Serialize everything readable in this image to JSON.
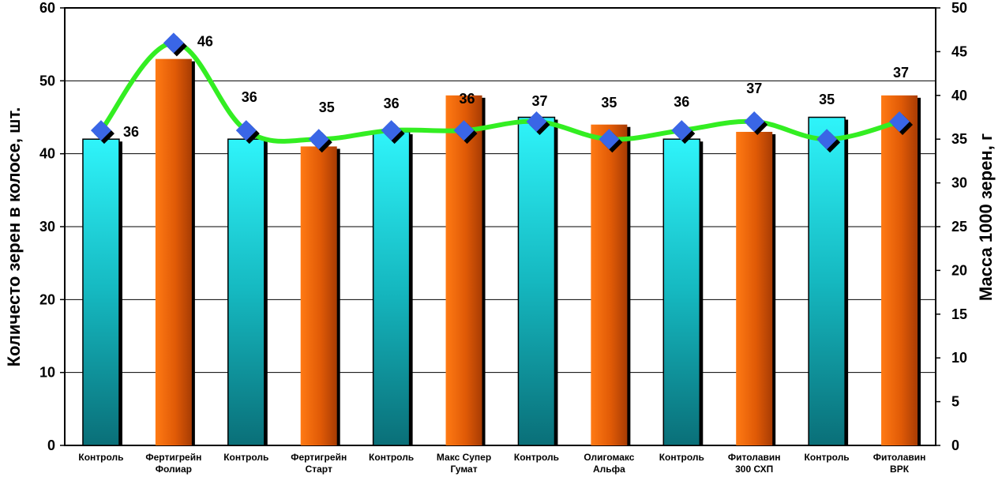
{
  "chart_data": {
    "type": "bar",
    "categories": [
      [
        "Контроль"
      ],
      [
        "Фертигрейн",
        "Фолиар"
      ],
      [
        "Контроль"
      ],
      [
        "Фертигрейн",
        "Старт"
      ],
      [
        "Контроль"
      ],
      [
        "Макс Супер",
        "Гумат"
      ],
      [
        "Контроль"
      ],
      [
        "Олигомакс",
        "Альфа"
      ],
      [
        "Контроль"
      ],
      [
        "Фитолавин",
        "300 СХП"
      ],
      [
        "Контроль"
      ],
      [
        "Фитолавин",
        "ВРК"
      ]
    ],
    "series": [
      {
        "kind": "bar",
        "axis": "left",
        "values": [
          42,
          53,
          42,
          41,
          43,
          48,
          45,
          44,
          42,
          43,
          45,
          48
        ],
        "bar_kinds": [
          "control",
          "treatment",
          "control",
          "treatment",
          "control",
          "treatment",
          "control",
          "treatment",
          "control",
          "treatment",
          "control",
          "treatment"
        ]
      },
      {
        "kind": "line",
        "axis": "right",
        "values": [
          36,
          46,
          36,
          35,
          36,
          36,
          37,
          35,
          36,
          37,
          35,
          37
        ],
        "labels": [
          "36",
          "46",
          "36",
          "35",
          "36",
          "36",
          "37",
          "35",
          "36",
          "37",
          "35",
          "37"
        ]
      }
    ],
    "ylabel_left": "Количесто зерен в колосе, шт.",
    "ylabel_right": "Масса 1000 зерен, г",
    "ylim_left": [
      0,
      60
    ],
    "yticks_left": [
      "0",
      "10",
      "20",
      "30",
      "40",
      "50",
      "60"
    ],
    "ylim_right": [
      0,
      50
    ],
    "yticks_right": [
      "0",
      "5",
      "10",
      "15",
      "20",
      "25",
      "30",
      "35",
      "40",
      "45",
      "50"
    ],
    "grid": "horizontal",
    "legend": "none",
    "colors": {
      "control_bar": "#1fd6e0",
      "treatment_bar": "#e8600a",
      "line": "#33ee22",
      "marker": "#3a66e6"
    }
  }
}
